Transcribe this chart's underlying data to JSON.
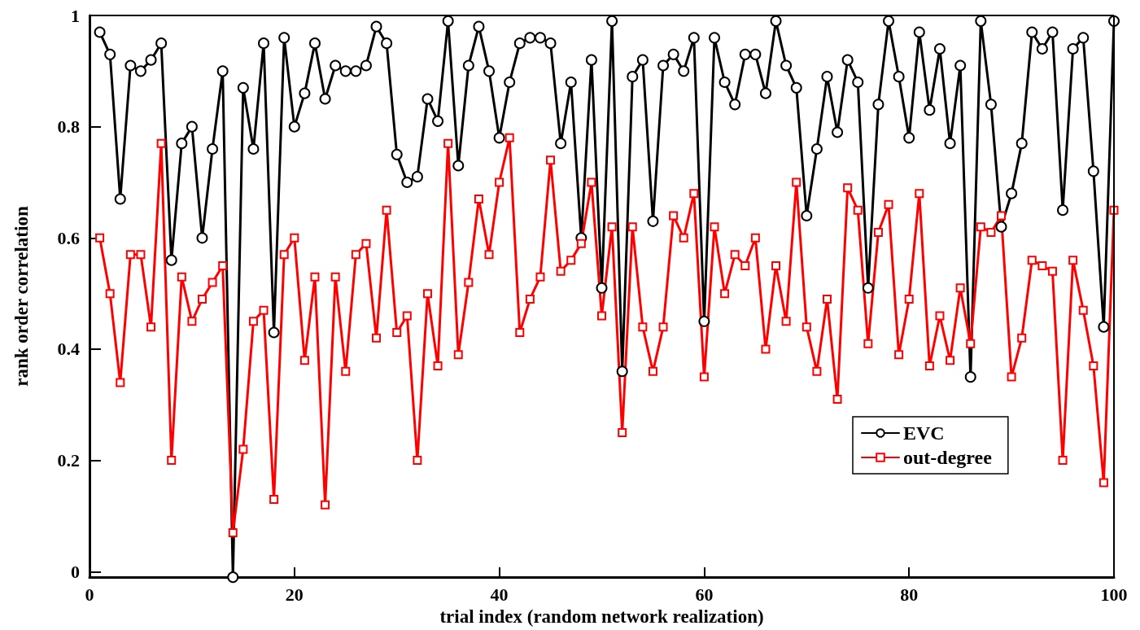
{
  "chart_data": {
    "type": "line",
    "xlabel": "trial index (random network realization)",
    "ylabel": "rank order correlation",
    "x": [
      1,
      2,
      3,
      4,
      5,
      6,
      7,
      8,
      9,
      10,
      11,
      12,
      13,
      14,
      15,
      16,
      17,
      18,
      19,
      20,
      21,
      22,
      23,
      24,
      25,
      26,
      27,
      28,
      29,
      30,
      31,
      32,
      33,
      34,
      35,
      36,
      37,
      38,
      39,
      40,
      41,
      42,
      43,
      44,
      45,
      46,
      47,
      48,
      49,
      50,
      51,
      52,
      53,
      54,
      55,
      56,
      57,
      58,
      59,
      60,
      61,
      62,
      63,
      64,
      65,
      66,
      67,
      68,
      69,
      70,
      71,
      72,
      73,
      74,
      75,
      76,
      77,
      78,
      79,
      80,
      81,
      82,
      83,
      84,
      85,
      86,
      87,
      88,
      89,
      90,
      91,
      92,
      93,
      94,
      95,
      96,
      97,
      98,
      99,
      100
    ],
    "series": [
      {
        "name": "EVC",
        "color": "#000000",
        "marker": "circle",
        "values": [
          0.97,
          0.93,
          0.67,
          0.91,
          0.9,
          0.92,
          0.95,
          0.56,
          0.77,
          0.8,
          0.6,
          0.76,
          0.9,
          -0.01,
          0.87,
          0.76,
          0.95,
          0.43,
          0.96,
          0.8,
          0.86,
          0.95,
          0.85,
          0.91,
          0.9,
          0.9,
          0.91,
          0.98,
          0.95,
          0.75,
          0.7,
          0.71,
          0.85,
          0.81,
          0.99,
          0.73,
          0.91,
          0.98,
          0.9,
          0.78,
          0.88,
          0.95,
          0.96,
          0.96,
          0.95,
          0.77,
          0.88,
          0.6,
          0.92,
          0.51,
          0.99,
          0.36,
          0.89,
          0.92,
          0.63,
          0.91,
          0.93,
          0.9,
          0.96,
          0.45,
          0.96,
          0.88,
          0.84,
          0.93,
          0.93,
          0.86,
          0.99,
          0.91,
          0.87,
          0.64,
          0.76,
          0.89,
          0.79,
          0.92,
          0.88,
          0.51,
          0.84,
          0.99,
          0.89,
          0.78,
          0.97,
          0.83,
          0.94,
          0.77,
          0.91,
          0.35,
          0.99,
          0.84,
          0.62,
          0.68,
          0.77,
          0.97,
          0.94,
          0.97,
          0.65,
          0.94,
          0.96,
          0.72,
          0.44,
          0.99
        ]
      },
      {
        "name": "out-degree",
        "color": "#ff0000",
        "marker": "square",
        "values": [
          0.6,
          0.5,
          0.34,
          0.57,
          0.57,
          0.44,
          0.77,
          0.2,
          0.53,
          0.45,
          0.49,
          0.52,
          0.55,
          0.07,
          0.22,
          0.45,
          0.47,
          0.13,
          0.57,
          0.6,
          0.38,
          0.53,
          0.12,
          0.53,
          0.36,
          0.57,
          0.59,
          0.42,
          0.65,
          0.43,
          0.46,
          0.2,
          0.5,
          0.37,
          0.77,
          0.39,
          0.52,
          0.67,
          0.57,
          0.7,
          0.78,
          0.43,
          0.49,
          0.53,
          0.74,
          0.54,
          0.56,
          0.59,
          0.7,
          0.46,
          0.62,
          0.25,
          0.62,
          0.44,
          0.36,
          0.44,
          0.64,
          0.6,
          0.68,
          0.35,
          0.62,
          0.5,
          0.57,
          0.55,
          0.6,
          0.4,
          0.55,
          0.45,
          0.7,
          0.44,
          0.36,
          0.49,
          0.31,
          0.69,
          0.65,
          0.41,
          0.61,
          0.66,
          0.39,
          0.49,
          0.68,
          0.37,
          0.46,
          0.38,
          0.51,
          0.41,
          0.62,
          0.61,
          0.64,
          0.35,
          0.42,
          0.56,
          0.55,
          0.54,
          0.2,
          0.56,
          0.47,
          0.37,
          0.16,
          0.65
        ]
      }
    ],
    "xlim": [
      0,
      100
    ],
    "xticks": [
      0,
      20,
      40,
      60,
      80,
      100
    ],
    "ylim": [
      -0.01,
      1
    ],
    "yticks": [
      0,
      0.2,
      0.4,
      0.6,
      0.8,
      1
    ],
    "grid": false,
    "legend": "bottom right",
    "line_style": "solid"
  }
}
